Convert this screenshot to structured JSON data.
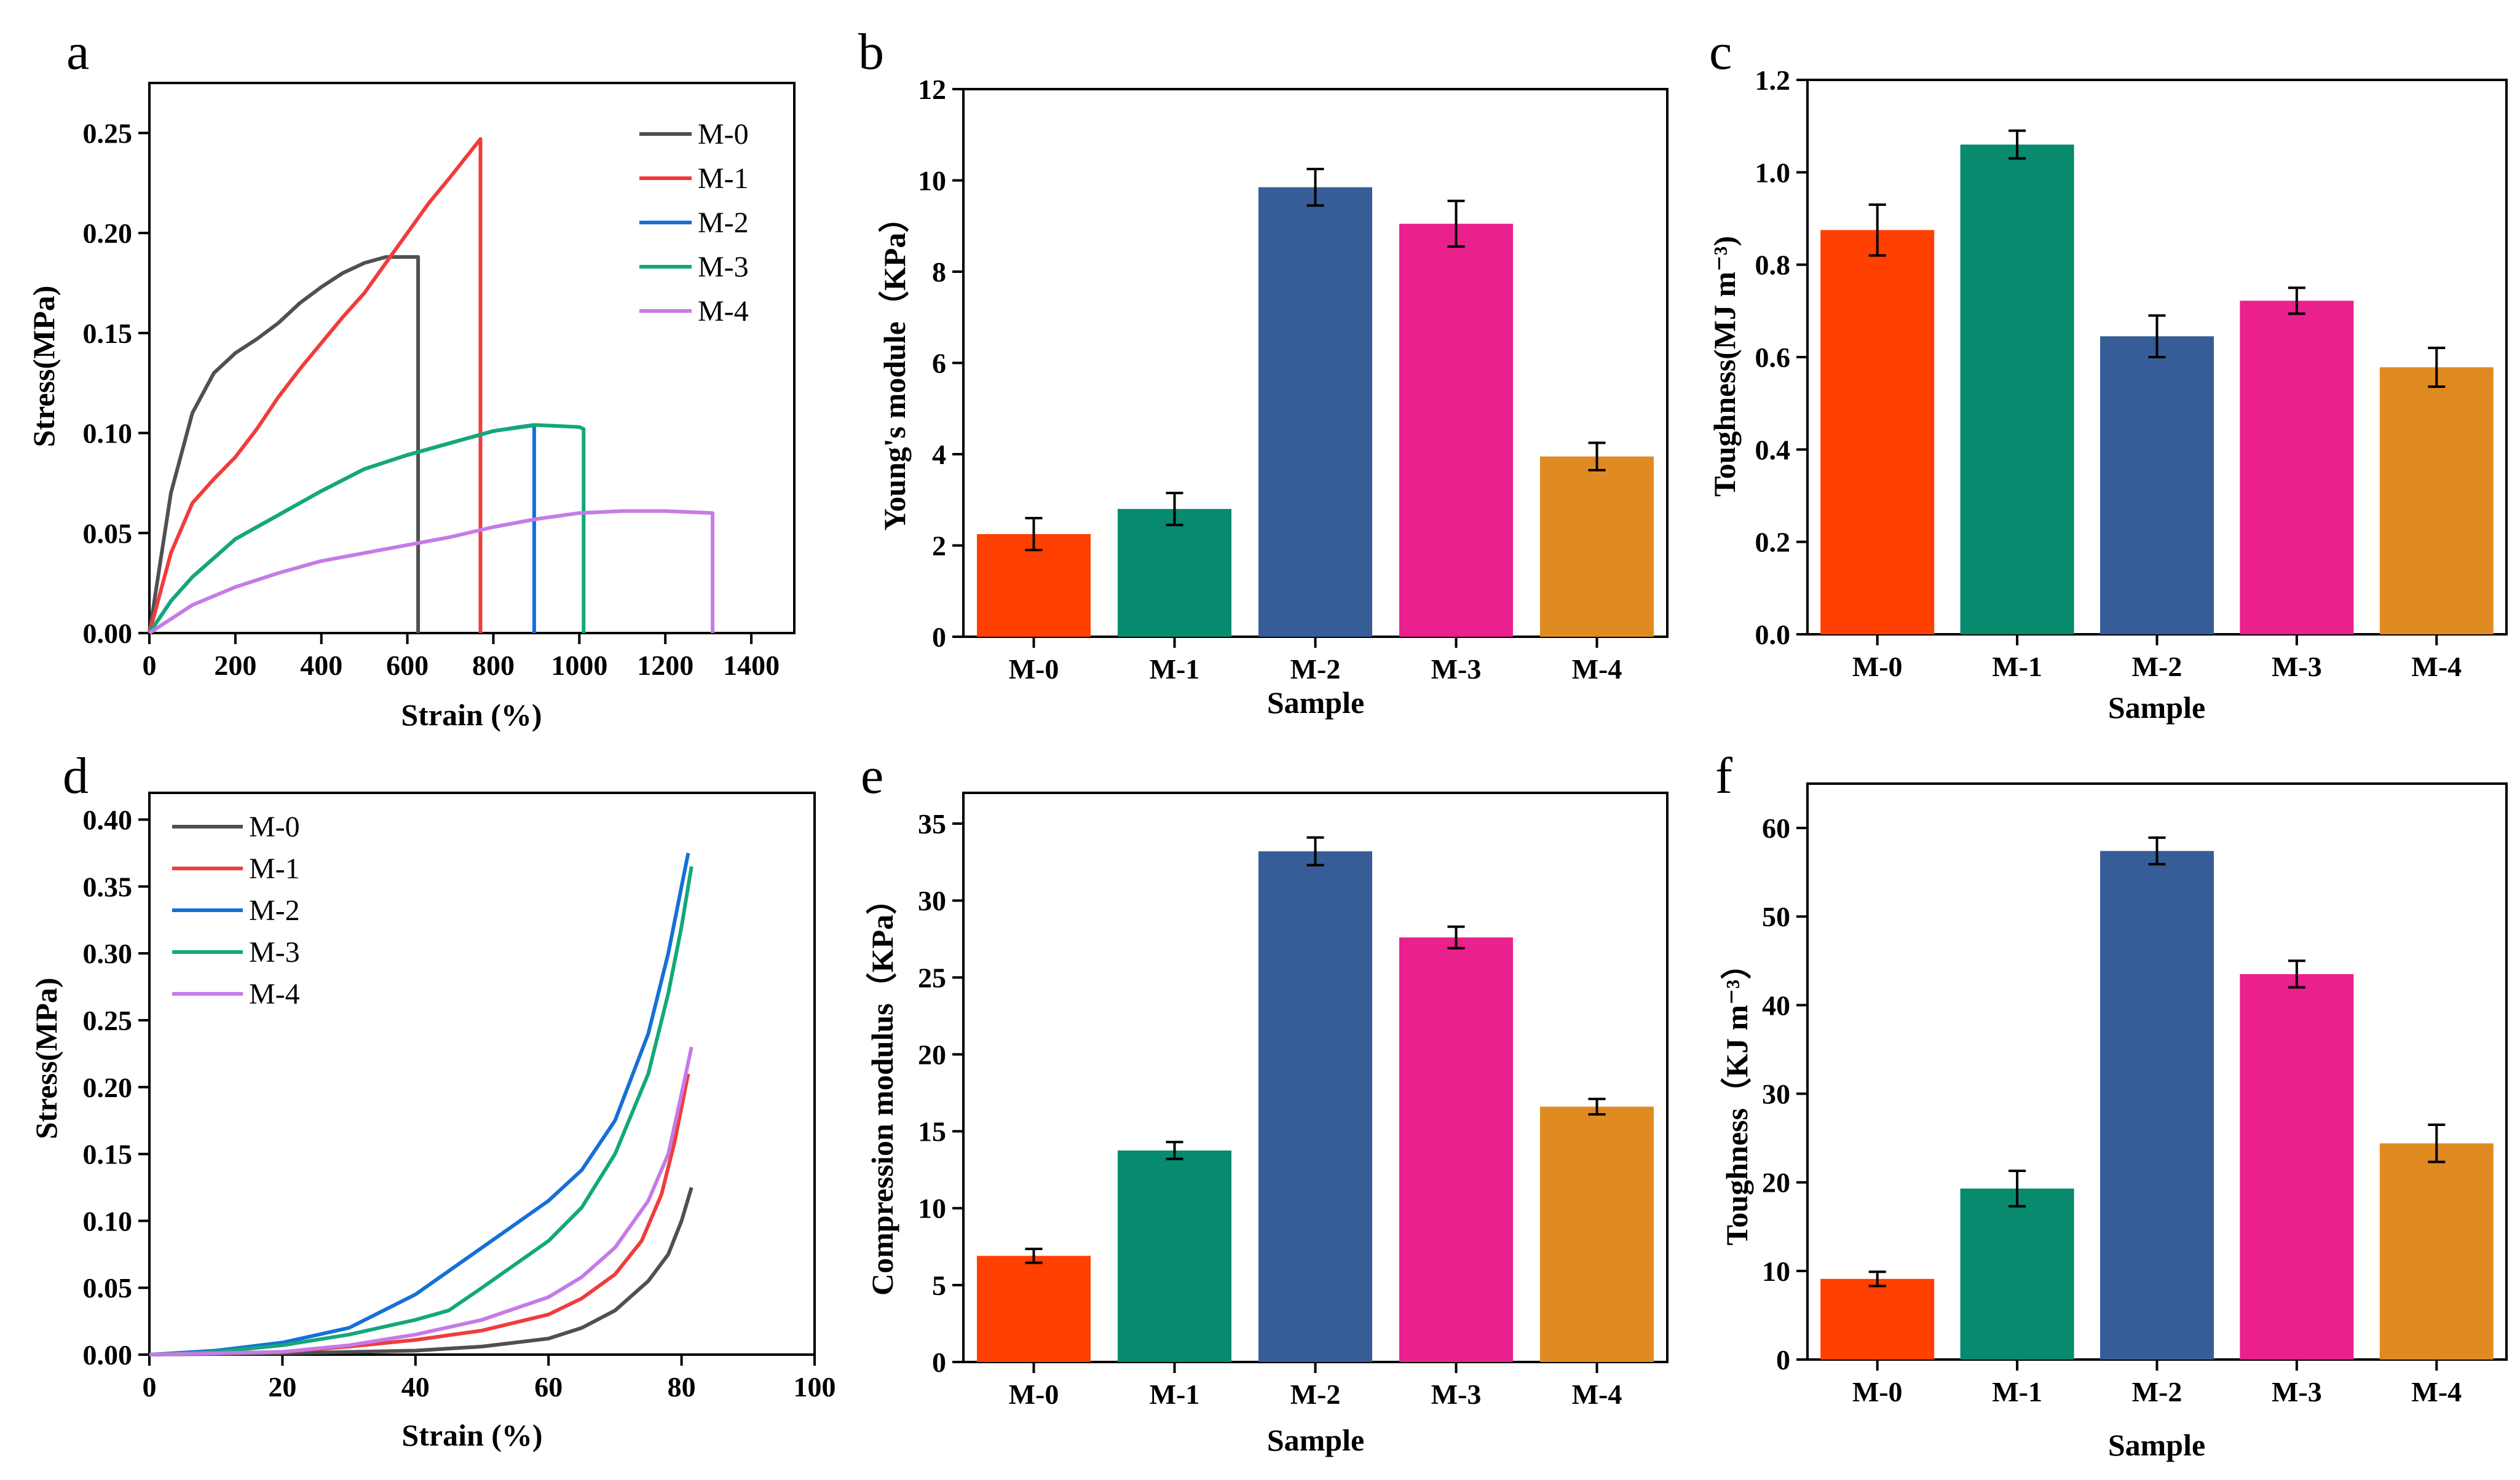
{
  "figure": {
    "colors": {
      "M-0": "#ff4000",
      "M-1": "#078a6e",
      "M-2": "#375d99",
      "M-3": "#ea208d",
      "M-4": "#e08a22"
    },
    "line_colors": [
      "#505050",
      "#f03c3c",
      "#1570d8",
      "#13a87a",
      "#c57be6"
    ]
  },
  "chart_data": [
    {
      "panel": "a",
      "type": "line",
      "title": "",
      "xlabel": "Strain (%)",
      "ylabel": "Stress(MPa)",
      "xlim": [
        0,
        1500
      ],
      "ylim": [
        0,
        0.275
      ],
      "xticks": [
        0,
        200,
        400,
        600,
        800,
        1000,
        1200,
        1400
      ],
      "xtick_labels": [
        "0",
        "200",
        "400",
        "600",
        "800",
        "1000",
        "1200",
        "1400"
      ],
      "yticks": [
        0,
        0.05,
        0.1,
        0.15,
        0.2,
        0.25
      ],
      "ytick_labels": [
        "0.00",
        "0.05",
        "0.10",
        "0.15",
        "0.20",
        "0.25"
      ],
      "legend": "top-right",
      "series": [
        {
          "name": "M-0",
          "x": [
            0,
            50,
            100,
            150,
            200,
            250,
            300,
            350,
            400,
            450,
            500,
            550,
            600,
            625,
            625
          ],
          "y": [
            0,
            0.07,
            0.11,
            0.13,
            0.14,
            0.147,
            0.155,
            0.165,
            0.173,
            0.18,
            0.185,
            0.188,
            0.188,
            0.188,
            0
          ]
        },
        {
          "name": "M-1",
          "x": [
            0,
            50,
            100,
            150,
            200,
            250,
            300,
            350,
            400,
            450,
            500,
            550,
            600,
            650,
            700,
            770,
            770
          ],
          "y": [
            0,
            0.04,
            0.065,
            0.077,
            0.088,
            0.102,
            0.118,
            0.132,
            0.145,
            0.158,
            0.17,
            0.185,
            0.2,
            0.215,
            0.228,
            0.247,
            0
          ]
        },
        {
          "name": "M-2",
          "x": [
            0,
            50,
            100,
            200,
            300,
            400,
            500,
            600,
            700,
            800,
            860,
            895,
            895
          ],
          "y": [
            0,
            0.016,
            0.028,
            0.047,
            0.059,
            0.071,
            0.082,
            0.089,
            0.095,
            0.101,
            0.103,
            0.104,
            0
          ]
        },
        {
          "name": "M-3",
          "x": [
            0,
            50,
            100,
            200,
            300,
            400,
            500,
            600,
            700,
            800,
            900,
            1000,
            1010,
            1010
          ],
          "y": [
            0,
            0.016,
            0.028,
            0.047,
            0.059,
            0.071,
            0.082,
            0.089,
            0.095,
            0.101,
            0.104,
            0.103,
            0.102,
            0
          ]
        },
        {
          "name": "M-4",
          "x": [
            0,
            100,
            200,
            300,
            400,
            500,
            600,
            700,
            800,
            900,
            1000,
            1100,
            1200,
            1310,
            1310
          ],
          "y": [
            0,
            0.014,
            0.023,
            0.03,
            0.036,
            0.04,
            0.044,
            0.048,
            0.053,
            0.057,
            0.06,
            0.061,
            0.061,
            0.06,
            0
          ]
        }
      ]
    },
    {
      "panel": "b",
      "type": "bar",
      "title": "",
      "xlabel": "Sample",
      "ylabel": "Young's module（KPa）",
      "categories": [
        "M-0",
        "M-1",
        "M-2",
        "M-3",
        "M-4"
      ],
      "values": [
        2.25,
        2.8,
        9.85,
        9.05,
        3.95
      ],
      "errors": [
        0.35,
        0.35,
        0.4,
        0.5,
        0.3
      ],
      "ylim": [
        0,
        12
      ],
      "yticks": [
        0,
        2,
        4,
        6,
        8,
        10,
        12
      ],
      "ytick_labels": [
        "0",
        "2",
        "4",
        "6",
        "8",
        "10",
        "12"
      ]
    },
    {
      "panel": "c",
      "type": "bar",
      "title": "",
      "xlabel": "Sample",
      "ylabel": "Toughness(MJ m⁻³)",
      "categories": [
        "M-0",
        "M-1",
        "M-2",
        "M-3",
        "M-4"
      ],
      "values": [
        0.875,
        1.06,
        0.645,
        0.722,
        0.578
      ],
      "errors": [
        0.055,
        0.03,
        0.045,
        0.028,
        0.042
      ],
      "ylim": [
        0,
        1.2
      ],
      "yticks": [
        0,
        0.2,
        0.4,
        0.6,
        0.8,
        1.0,
        1.2
      ],
      "ytick_labels": [
        "0.0",
        "0.2",
        "0.4",
        "0.6",
        "0.8",
        "1.0",
        "1.2"
      ]
    },
    {
      "panel": "d",
      "type": "line",
      "title": "",
      "xlabel": "Strain (%)",
      "ylabel": "Stress(MPa)",
      "xlim": [
        0,
        100
      ],
      "ylim": [
        0,
        0.42
      ],
      "xticks": [
        0,
        20,
        40,
        60,
        80,
        100
      ],
      "xtick_labels": [
        "0",
        "20",
        "40",
        "60",
        "80",
        "100"
      ],
      "yticks": [
        0,
        0.05,
        0.1,
        0.15,
        0.2,
        0.25,
        0.3,
        0.35,
        0.4
      ],
      "ytick_labels": [
        "0.00",
        "0.05",
        "0.10",
        "0.15",
        "0.20",
        "0.25",
        "0.30",
        "0.35",
        "0.40"
      ],
      "legend": "top-left",
      "series": [
        {
          "name": "M-0",
          "x": [
            0,
            20,
            40,
            50,
            60,
            65,
            70,
            75,
            78,
            80,
            81.5
          ],
          "y": [
            0,
            0.001,
            0.003,
            0.006,
            0.012,
            0.02,
            0.033,
            0.055,
            0.075,
            0.1,
            0.125
          ]
        },
        {
          "name": "M-1",
          "x": [
            0,
            20,
            30,
            40,
            50,
            60,
            65,
            70,
            74,
            77,
            79,
            81
          ],
          "y": [
            0,
            0.002,
            0.006,
            0.011,
            0.018,
            0.03,
            0.042,
            0.06,
            0.085,
            0.12,
            0.16,
            0.21
          ]
        },
        {
          "name": "M-2",
          "x": [
            0,
            10,
            20,
            30,
            40,
            50,
            60,
            65,
            70,
            75,
            78,
            80,
            81
          ],
          "y": [
            0,
            0.003,
            0.009,
            0.02,
            0.045,
            0.08,
            0.115,
            0.138,
            0.175,
            0.24,
            0.3,
            0.35,
            0.375
          ]
        },
        {
          "name": "M-3",
          "x": [
            0,
            10,
            20,
            30,
            40,
            45,
            50,
            60,
            65,
            70,
            75,
            78,
            80,
            81.5
          ],
          "y": [
            0,
            0.002,
            0.007,
            0.015,
            0.026,
            0.033,
            0.05,
            0.085,
            0.11,
            0.15,
            0.21,
            0.27,
            0.32,
            0.365
          ]
        },
        {
          "name": "M-4",
          "x": [
            0,
            20,
            30,
            40,
            50,
            60,
            65,
            70,
            75,
            78,
            80,
            81.5
          ],
          "y": [
            0,
            0.002,
            0.007,
            0.015,
            0.026,
            0.043,
            0.058,
            0.08,
            0.115,
            0.15,
            0.195,
            0.23
          ]
        }
      ]
    },
    {
      "panel": "e",
      "type": "bar",
      "title": "",
      "xlabel": "Sample",
      "ylabel": "Compression modulus（KPa）",
      "categories": [
        "M-0",
        "M-1",
        "M-2",
        "M-3",
        "M-4"
      ],
      "values": [
        6.9,
        13.75,
        33.2,
        27.6,
        16.6
      ],
      "errors": [
        0.45,
        0.55,
        0.9,
        0.7,
        0.5
      ],
      "ylim": [
        0,
        37
      ],
      "yticks": [
        0,
        5,
        10,
        15,
        20,
        25,
        30,
        35
      ],
      "ytick_labels": [
        "0",
        "5",
        "10",
        "15",
        "20",
        "25",
        "30",
        "35"
      ]
    },
    {
      "panel": "f",
      "type": "bar",
      "title": "",
      "xlabel": "Sample",
      "ylabel": "Toughness（KJ m⁻³）",
      "categories": [
        "M-0",
        "M-1",
        "M-2",
        "M-3",
        "M-4"
      ],
      "values": [
        9.1,
        19.3,
        57.4,
        43.5,
        24.4
      ],
      "errors": [
        0.8,
        2.0,
        1.5,
        1.5,
        2.1
      ],
      "ylim": [
        0,
        65
      ],
      "yticks": [
        0,
        10,
        20,
        30,
        40,
        50,
        60
      ],
      "ytick_labels": [
        "0",
        "10",
        "20",
        "30",
        "40",
        "50",
        "60"
      ]
    }
  ]
}
